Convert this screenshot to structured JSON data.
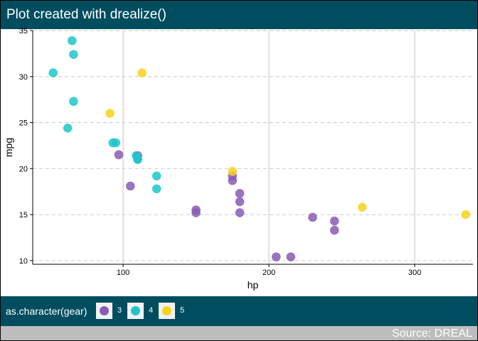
{
  "header": {
    "title": "Plot created with drealize()"
  },
  "footer": {
    "source": "Source: DREAL"
  },
  "legend": {
    "title": "as.character(gear)",
    "items": [
      {
        "label": "3",
        "color": "#8a5bb4"
      },
      {
        "label": "4",
        "color": "#1fc5c9"
      },
      {
        "label": "5",
        "color": "#f8d21e"
      }
    ]
  },
  "chart_data": {
    "type": "scatter",
    "xlabel": "hp",
    "ylabel": "mpg",
    "xlim": [
      38,
      340
    ],
    "ylim": [
      9.6,
      35
    ],
    "x_ticks": [
      100,
      200,
      300
    ],
    "y_ticks": [
      10,
      15,
      20,
      25,
      30,
      35
    ],
    "grid": {
      "vertical": "solid",
      "horizontal": "dashed"
    },
    "legend_position": "bottom",
    "series": [
      {
        "name": "3",
        "color": "#8a5bb4",
        "points": [
          [
            110,
            21.4
          ],
          [
            175,
            18.7
          ],
          [
            105,
            18.1
          ],
          [
            245,
            14.3
          ],
          [
            180,
            16.4
          ],
          [
            180,
            17.3
          ],
          [
            180,
            15.2
          ],
          [
            205,
            10.4
          ],
          [
            215,
            10.4
          ],
          [
            230,
            14.7
          ],
          [
            97,
            21.5
          ],
          [
            150,
            15.5
          ],
          [
            150,
            15.2
          ],
          [
            245,
            13.3
          ],
          [
            175,
            19.2
          ]
        ]
      },
      {
        "name": "4",
        "color": "#1fc5c9",
        "points": [
          [
            110,
            21.0
          ],
          [
            110,
            21.0
          ],
          [
            93,
            22.8
          ],
          [
            62,
            24.4
          ],
          [
            95,
            22.8
          ],
          [
            123,
            19.2
          ],
          [
            123,
            17.8
          ],
          [
            66,
            32.4
          ],
          [
            52,
            30.4
          ],
          [
            65,
            33.9
          ],
          [
            66,
            27.3
          ],
          [
            109,
            21.4
          ]
        ]
      },
      {
        "name": "5",
        "color": "#f8d21e",
        "points": [
          [
            91,
            26.0
          ],
          [
            113,
            30.4
          ],
          [
            264,
            15.8
          ],
          [
            175,
            19.7
          ],
          [
            335,
            15.0
          ]
        ]
      }
    ]
  }
}
